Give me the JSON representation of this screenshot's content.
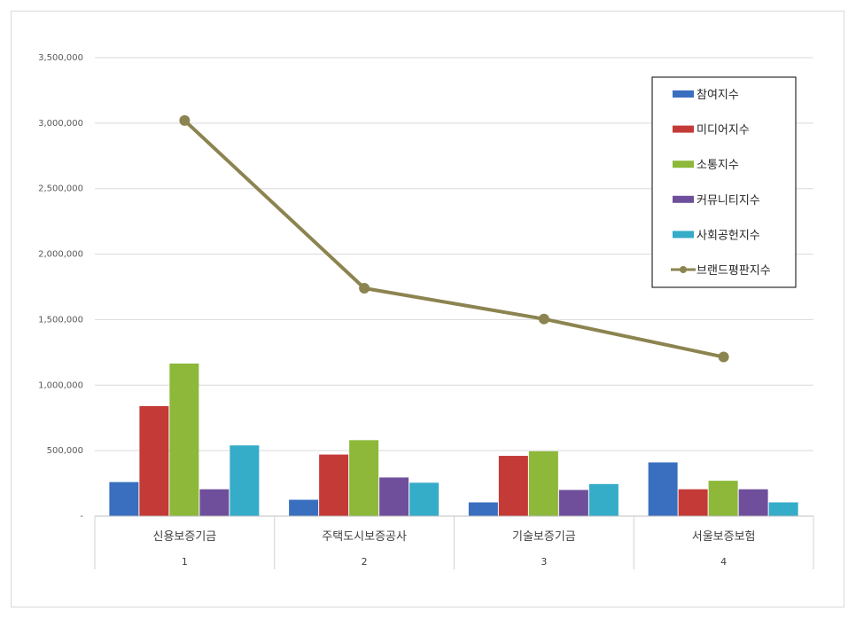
{
  "chart_data": {
    "type": "bar",
    "categories": [
      "신용보증기금",
      "주택도시보증공사",
      "기술보증기금",
      "서울보증보험"
    ],
    "category_numbers": [
      "1",
      "2",
      "3",
      "4"
    ],
    "ylim": [
      0,
      3500000
    ],
    "ytick_values": [
      0,
      500000,
      1000000,
      1500000,
      2000000,
      2500000,
      3000000,
      3500000
    ],
    "ytick_labels": [
      "-",
      "500,000",
      "1,000,000",
      "1,500,000",
      "2,000,000",
      "2,500,000",
      "3,000,000",
      "3,500,000"
    ],
    "grid": true,
    "legend_position": "top-right",
    "series": [
      {
        "name": "참여지수",
        "type": "bar",
        "color": "#3a6fbf",
        "values": [
          260000,
          125000,
          105000,
          410000
        ]
      },
      {
        "name": "미디어지수",
        "type": "bar",
        "color": "#c43a37",
        "values": [
          840000,
          470000,
          460000,
          205000
        ]
      },
      {
        "name": "소통지수",
        "type": "bar",
        "color": "#8db83a",
        "values": [
          1165000,
          580000,
          495000,
          270000
        ]
      },
      {
        "name": "커뮤니티지수",
        "type": "bar",
        "color": "#6f4f9b",
        "values": [
          205000,
          295000,
          200000,
          205000
        ]
      },
      {
        "name": "사회공헌지수",
        "type": "bar",
        "color": "#35acc8",
        "values": [
          540000,
          255000,
          245000,
          105000
        ]
      },
      {
        "name": "브랜드평판지수",
        "type": "line",
        "color": "#8c8450",
        "values": [
          3020000,
          1740000,
          1505000,
          1215000
        ]
      }
    ]
  }
}
